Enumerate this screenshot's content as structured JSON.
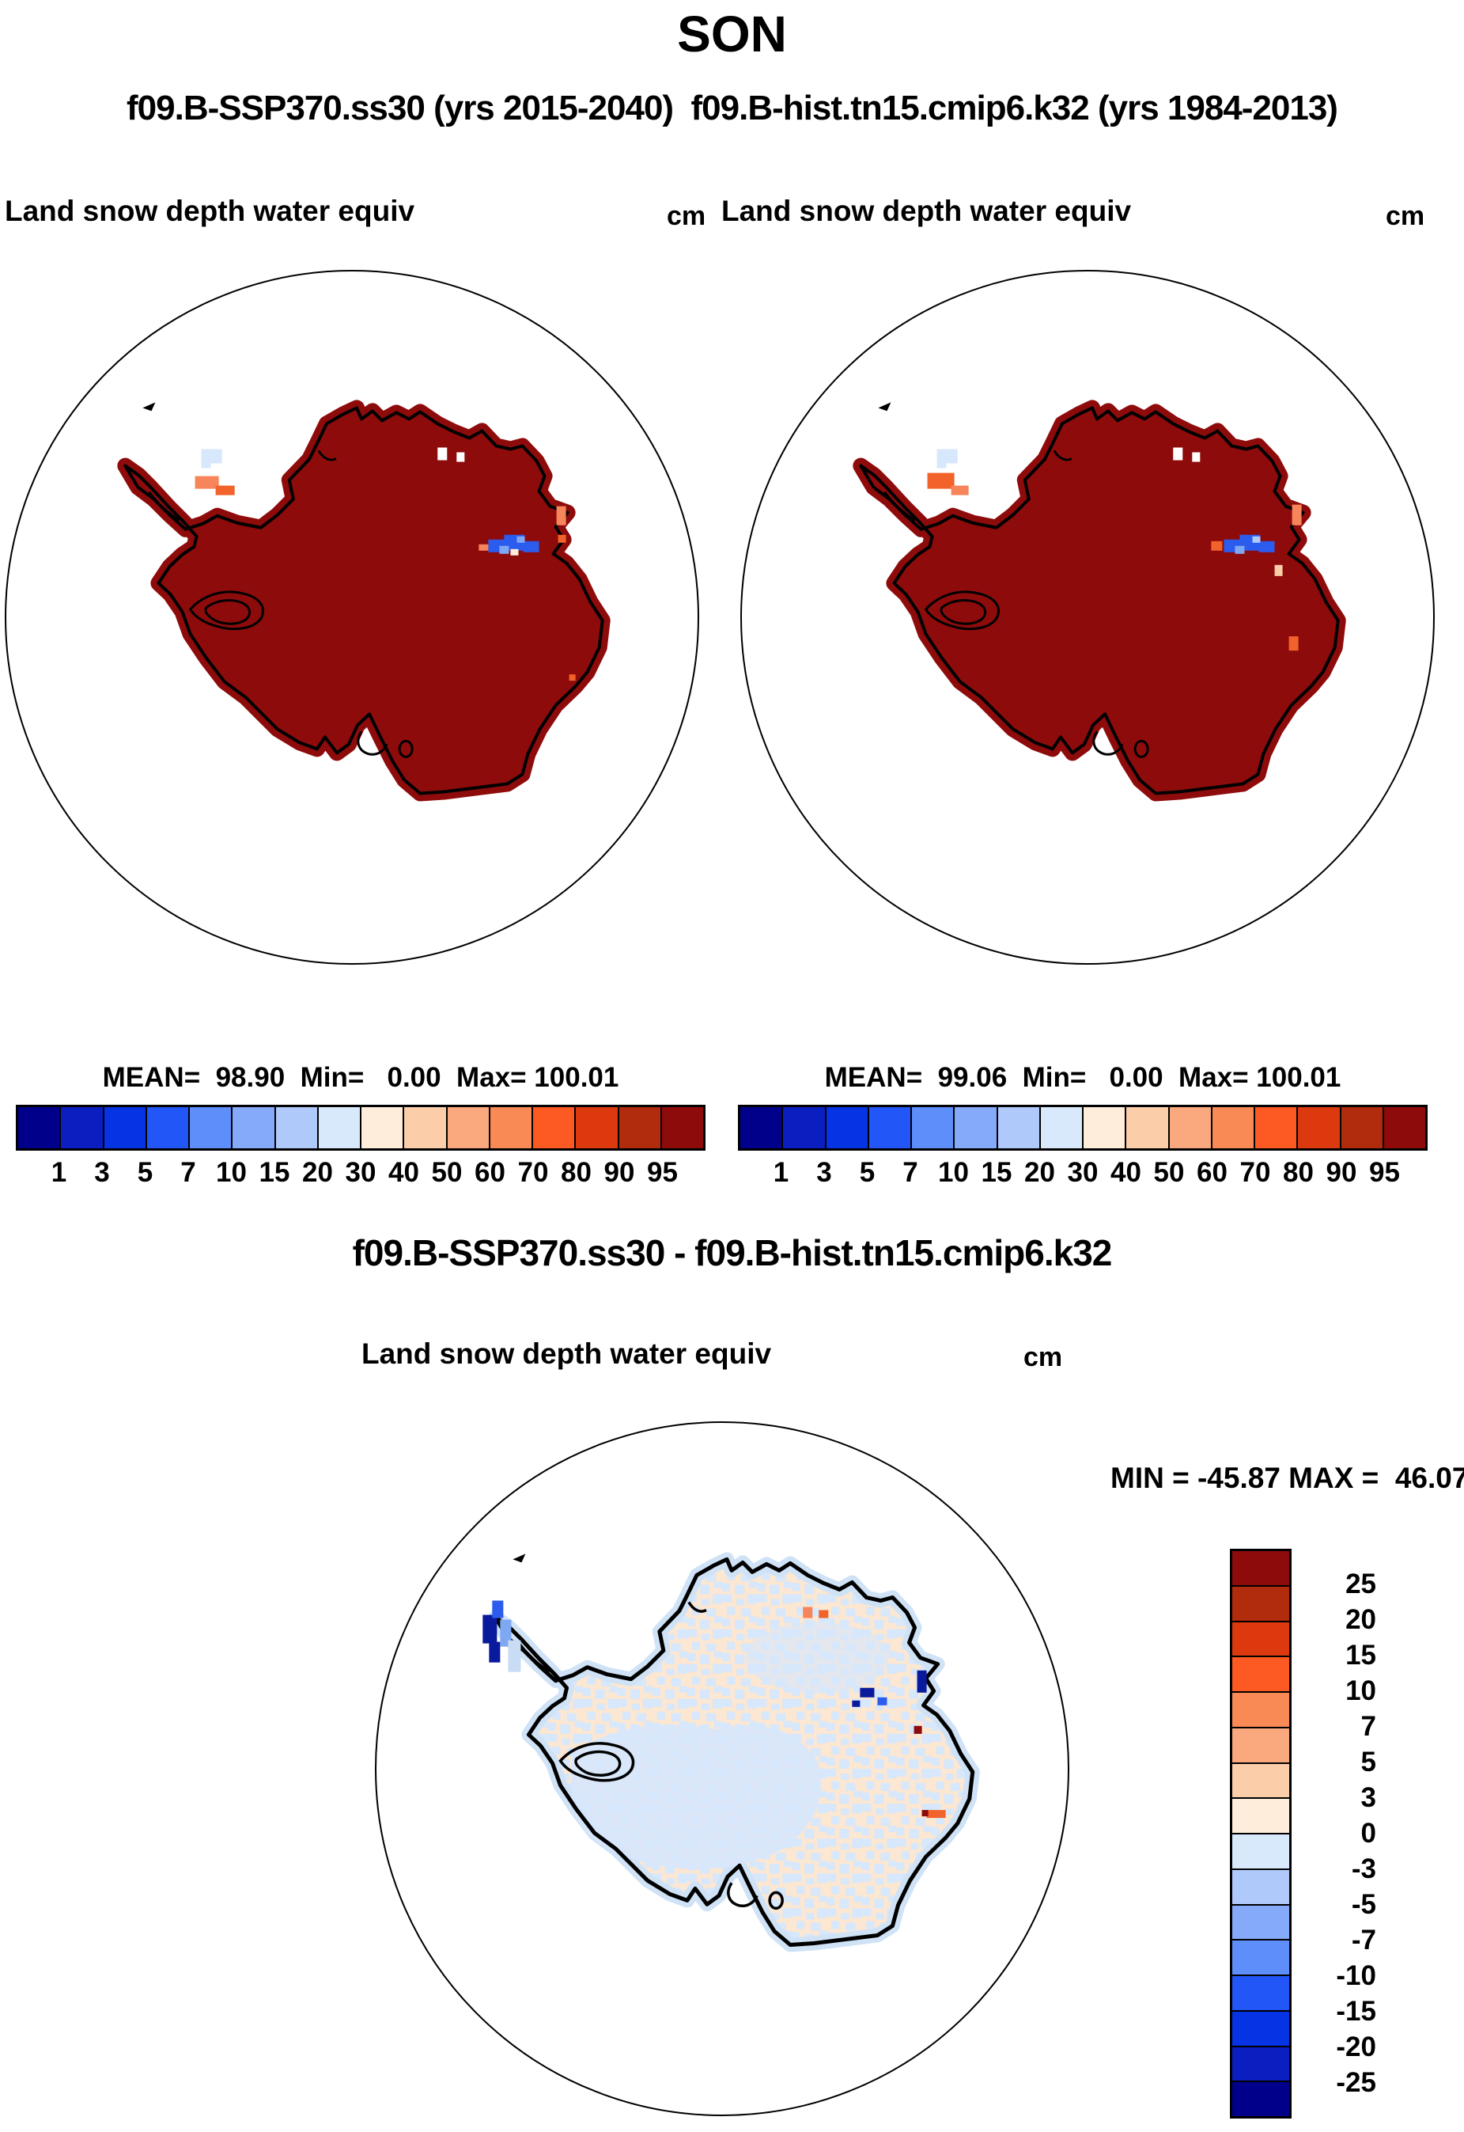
{
  "page": {
    "title": "SON",
    "subtitle": "f09.B-SSP370.ss30 (yrs 2015-2040)  f09.B-hist.tn15.cmip6.k32 (yrs 1984-2013)"
  },
  "panels": {
    "left": {
      "field_title": "Land snow depth water equiv",
      "units": "cm",
      "stats": "MEAN=  98.90  Min=   0.00  Max= 100.01"
    },
    "right": {
      "field_title": "Land snow depth water equiv",
      "units": "cm",
      "stats": "MEAN=  99.06  Min=   0.00  Max= 100.01"
    },
    "diff": {
      "title": "f09.B-SSP370.ss30 - f09.B-hist.tn15.cmip6.k32",
      "field_title": "Land snow depth water equiv",
      "units": "cm",
      "minmax": "MIN = -45.87 MAX =  46.07"
    }
  },
  "colorbars": {
    "top_ticks": [
      "1",
      "3",
      "5",
      "7",
      "10",
      "15",
      "20",
      "30",
      "40",
      "50",
      "60",
      "70",
      "80",
      "90",
      "95"
    ],
    "top_colors": [
      "#00008B",
      "#0B1FC1",
      "#0634E4",
      "#2256F7",
      "#5E8EFA",
      "#86AAFA",
      "#AFC9FA",
      "#D8E9FB",
      "#FDEDDA",
      "#FBCDA9",
      "#FAA87D",
      "#FA8A55",
      "#FC5A22",
      "#DC3A0E",
      "#B02C0C",
      "#8E0B0B"
    ],
    "diff_ticks": [
      "25",
      "20",
      "15",
      "10",
      "7",
      "5",
      "3",
      "0",
      "-3",
      "-5",
      "-7",
      "-10",
      "-15",
      "-20",
      "-25"
    ],
    "diff_colors": [
      "#8E0B0B",
      "#B02C0C",
      "#DC3A0E",
      "#FC5A22",
      "#FA8A55",
      "#FAA87D",
      "#FBCDA9",
      "#FDEDDA",
      "#D8E9FB",
      "#AFC9FA",
      "#86AAFA",
      "#5E8EFA",
      "#2256F7",
      "#0634E4",
      "#0B1FC1",
      "#00008B"
    ]
  },
  "map_colors": {
    "land_fill": "#8E0B0B",
    "coastline": "#000000",
    "ocean": "#FFFFFF",
    "circle_stroke": "#000000",
    "diff_base": "#FBE7D2",
    "diff_speckle": "#D7E7FC"
  },
  "chart_data": [
    {
      "type": "heatmap",
      "subtype": "south-polar-stereographic-map",
      "season": "SON",
      "run": "f09.B-SSP370.ss30",
      "years": "2015-2040",
      "title": "Land snow depth water equiv",
      "units": "cm",
      "region": "Antarctica",
      "mean": 98.9,
      "min": 0.0,
      "max": 100.01,
      "levels": [
        1,
        3,
        5,
        7,
        10,
        15,
        20,
        30,
        40,
        50,
        60,
        70,
        80,
        90,
        95
      ],
      "legend_position": "below"
    },
    {
      "type": "heatmap",
      "subtype": "south-polar-stereographic-map",
      "season": "SON",
      "run": "f09.B-hist.tn15.cmip6.k32",
      "years": "1984-2013",
      "title": "Land snow depth water equiv",
      "units": "cm",
      "region": "Antarctica",
      "mean": 99.06,
      "min": 0.0,
      "max": 100.01,
      "levels": [
        1,
        3,
        5,
        7,
        10,
        15,
        20,
        30,
        40,
        50,
        60,
        70,
        80,
        90,
        95
      ],
      "legend_position": "below"
    },
    {
      "type": "heatmap",
      "subtype": "south-polar-stereographic-difference-map",
      "season": "SON",
      "expression": "f09.B-SSP370.ss30 - f09.B-hist.tn15.cmip6.k32",
      "title": "Land snow depth water equiv",
      "units": "cm",
      "region": "Antarctica",
      "min": -45.87,
      "max": 46.07,
      "levels": [
        25,
        20,
        15,
        10,
        7,
        5,
        3,
        0,
        -3,
        -5,
        -7,
        -10,
        -15,
        -20,
        -25
      ],
      "legend_position": "right"
    }
  ]
}
